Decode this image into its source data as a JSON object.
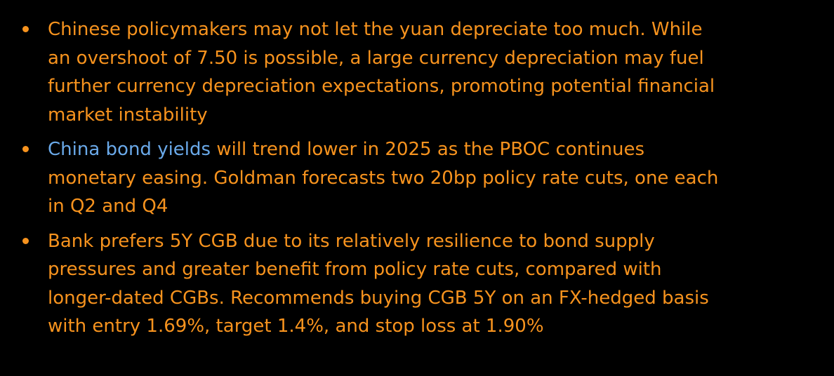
{
  "colors": {
    "background": "#000000",
    "body_text": "#f7931e",
    "link_text": "#6aa9e9"
  },
  "bullets": [
    {
      "text": "Chinese policymakers may not let the yuan depreciate too much. While an overshoot of 7.50 is possible, a large currency depreciation may fuel further currency depreciation expectations, promoting potential financial market instability"
    },
    {
      "link": "China bond yields",
      "text": " will trend lower in 2025 as the PBOC continues monetary easing. Goldman forecasts two 20bp policy rate cuts, one each in Q2 and Q4"
    },
    {
      "text": "Bank prefers 5Y CGB due to its relatively resilience to bond supply pressures and greater benefit from policy rate cuts, compared with longer-dated CGBs. Recommends buying CGB 5Y on an FX-hedged basis with entry 1.69%, target 1.4%, and stop loss at 1.90%"
    }
  ]
}
